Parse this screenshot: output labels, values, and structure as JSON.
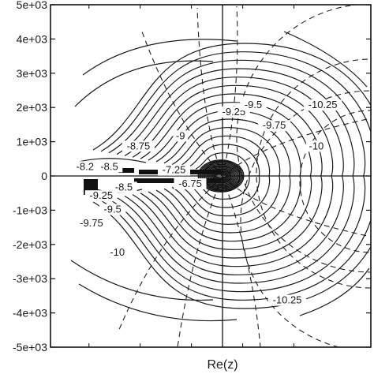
{
  "chart_data": {
    "type": "contour",
    "xlabel": "Re(z)",
    "ylabel": "",
    "ylim": [
      -5000,
      5000
    ],
    "yticks": [
      {
        "value": 5000,
        "label": "5e+03"
      },
      {
        "value": 4000,
        "label": "4e+03"
      },
      {
        "value": 3000,
        "label": "3e+03"
      },
      {
        "value": 2000,
        "label": "2e+03"
      },
      {
        "value": 1000,
        "label": "1e+03"
      },
      {
        "value": 0,
        "label": "0"
      },
      {
        "value": -1000,
        "label": "-1e+03"
      },
      {
        "value": -2000,
        "label": "-2e+03"
      },
      {
        "value": -3000,
        "label": "-3e+03"
      },
      {
        "value": -4000,
        "label": "-4e+03"
      },
      {
        "value": -5000,
        "label": "-5e+03"
      }
    ],
    "grid": false,
    "solid_contour_labels": [
      {
        "text": "-9.25",
        "x": 0.07,
        "y": 1800
      },
      {
        "text": "-9.5",
        "x": 0.19,
        "y": 2000
      },
      {
        "text": "-9.75",
        "x": 0.32,
        "y": 1400
      },
      {
        "text": "-10",
        "x": 0.58,
        "y": 800
      },
      {
        "text": "-10.25",
        "x": 0.62,
        "y": 2000
      },
      {
        "text": "-9",
        "x": -0.26,
        "y": 1100
      },
      {
        "text": "-8.75",
        "x": -0.52,
        "y": 800
      },
      {
        "text": "-8.5",
        "x": -0.7,
        "y": 200
      },
      {
        "text": "-8.2",
        "x": -0.85,
        "y": 200
      },
      {
        "text": "-7.25",
        "x": -0.3,
        "y": 100
      },
      {
        "text": "-6.75",
        "x": -0.2,
        "y": -300
      },
      {
        "text": "-8.5",
        "x": -0.61,
        "y": -400
      },
      {
        "text": "-9.25",
        "x": -0.75,
        "y": -650
      },
      {
        "text": "-9.5",
        "x": -0.68,
        "y": -1050
      },
      {
        "text": "-9.75",
        "x": -0.81,
        "y": -1450
      },
      {
        "text": "-10",
        "x": -0.65,
        "y": -2300
      },
      {
        "text": "-10.25",
        "x": 0.4,
        "y": -3700
      }
    ]
  }
}
